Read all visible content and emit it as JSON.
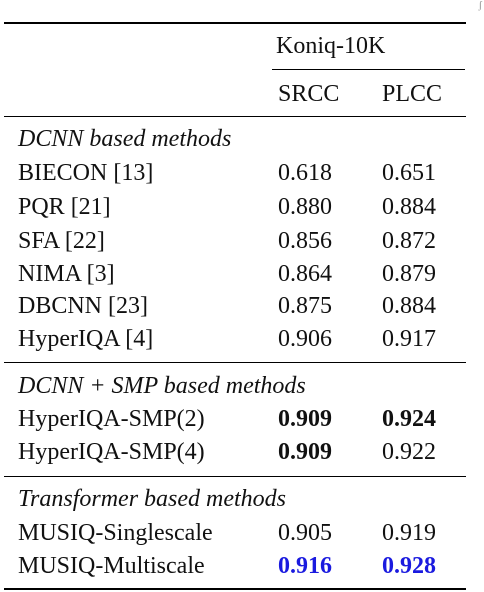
{
  "header": {
    "dataset": "Koniq-10K",
    "col_srcc": "SRCC",
    "col_plcc": "PLCC"
  },
  "sections": [
    {
      "title": "DCNN based methods",
      "rows": [
        {
          "method": "BIECON [13]",
          "srcc": "0.618",
          "plcc": "0.651"
        },
        {
          "method": "PQR [21]",
          "srcc": "0.880",
          "plcc": "0.884"
        },
        {
          "method": "SFA [22]",
          "srcc": "0.856",
          "plcc": "0.872"
        },
        {
          "method": "NIMA [3]",
          "srcc": "0.864",
          "plcc": "0.879"
        },
        {
          "method": "DBCNN [23]",
          "srcc": "0.875",
          "plcc": "0.884"
        },
        {
          "method": "HyperIQA [4]",
          "srcc": "0.906",
          "plcc": "0.917"
        }
      ]
    },
    {
      "title": "DCNN + SMP based methods",
      "rows": [
        {
          "method": "HyperIQA-SMP(2)",
          "srcc": "0.909",
          "plcc": "0.924"
        },
        {
          "method": "HyperIQA-SMP(4)",
          "srcc": "0.909",
          "plcc": "0.922"
        }
      ]
    },
    {
      "title": "Transformer based methods",
      "rows": [
        {
          "method": "MUSIQ-Singlescale",
          "srcc": "0.905",
          "plcc": "0.919"
        },
        {
          "method": "MUSIQ-Multiscale",
          "srcc": "0.916",
          "plcc": "0.928"
        }
      ]
    }
  ],
  "emphasis": {
    "bold_black": [
      "0.909",
      "0.924"
    ],
    "bold_blue_color": "#1a1adf"
  }
}
